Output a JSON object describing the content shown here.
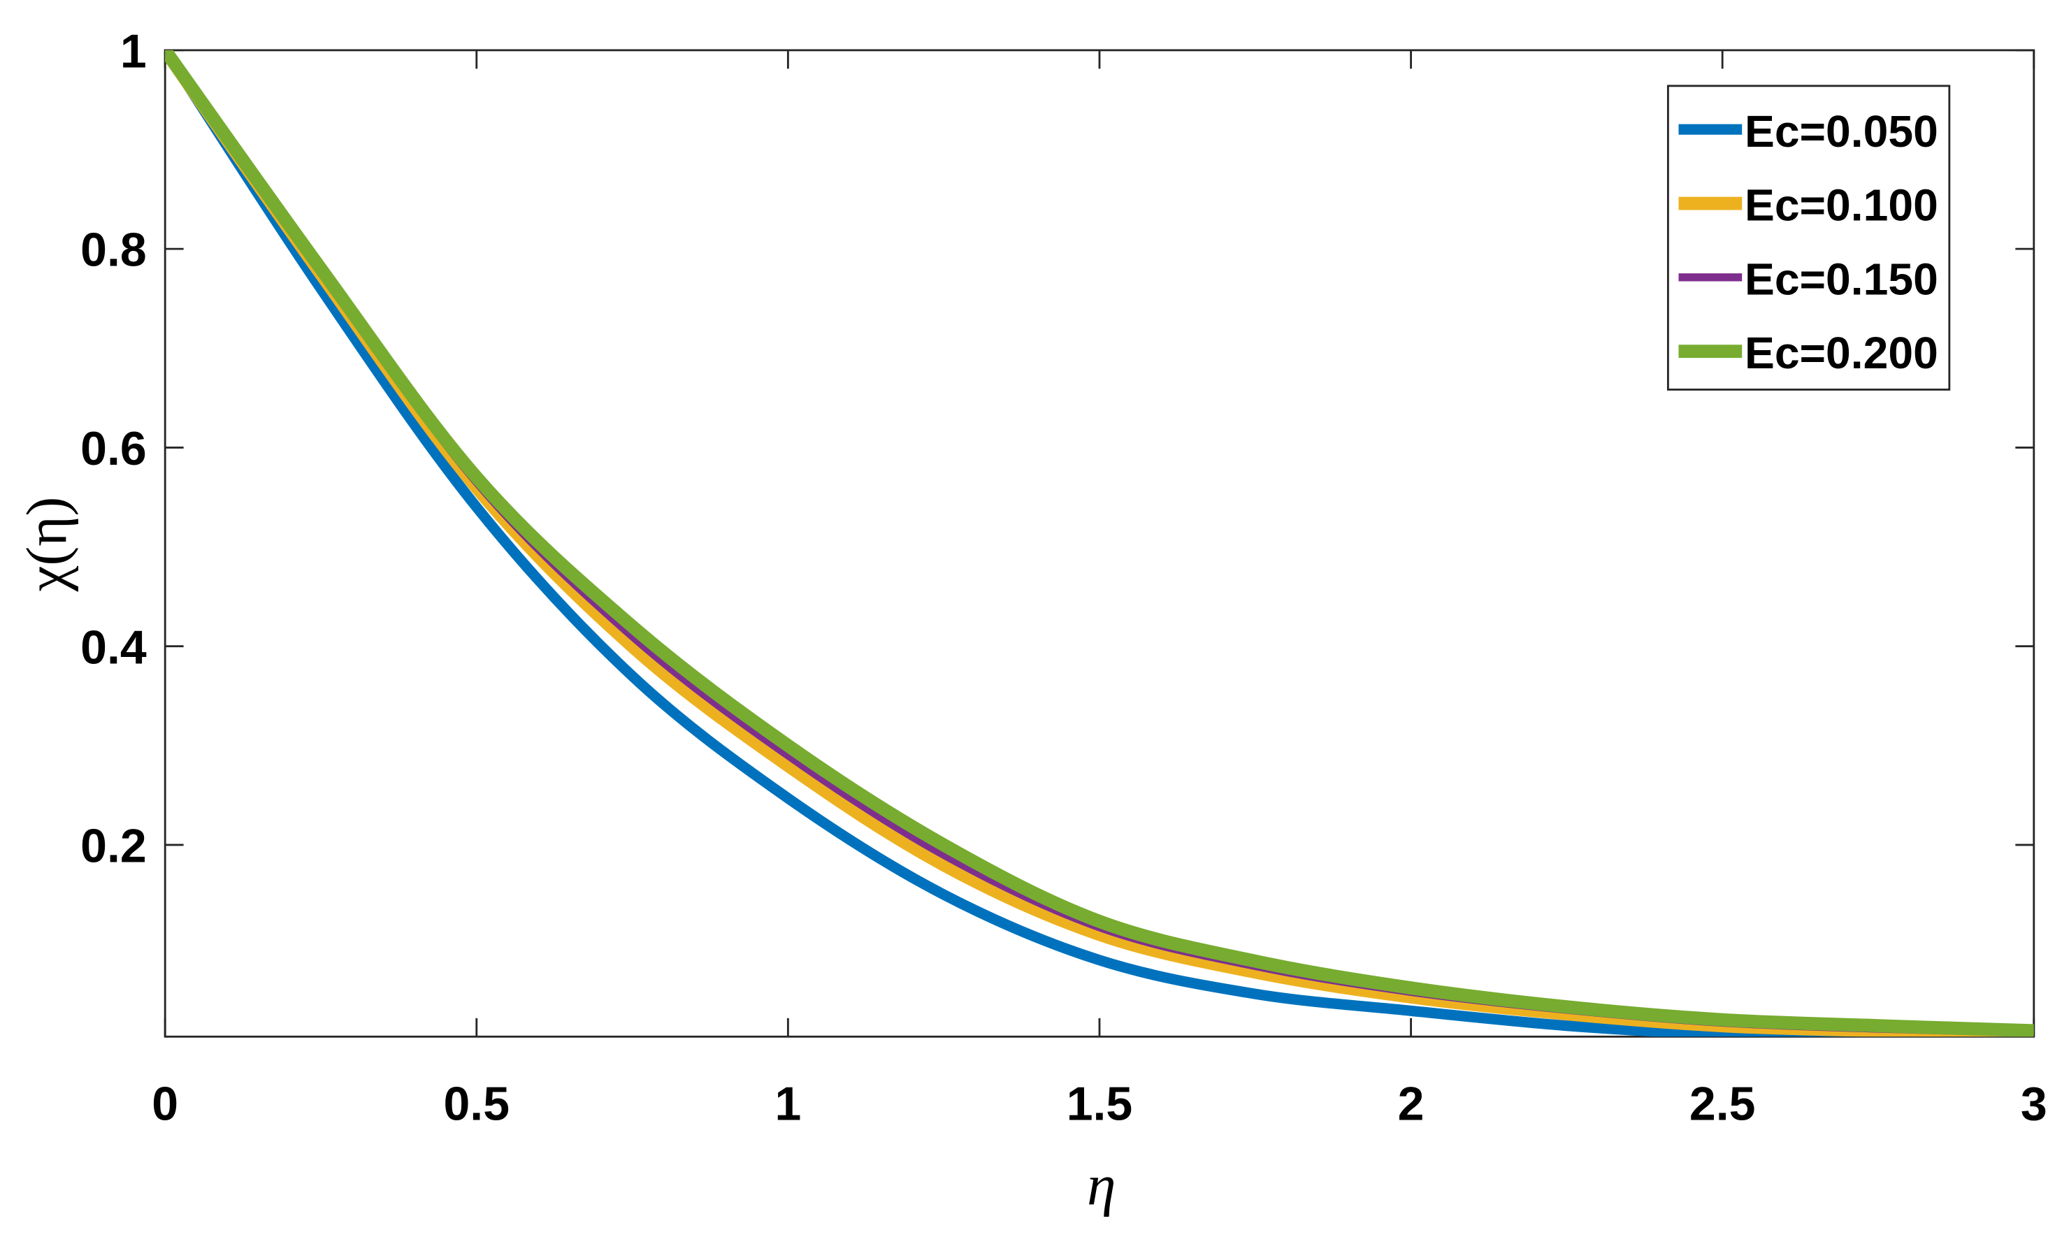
{
  "chart_data": {
    "type": "line",
    "x_label": "η",
    "y_label": "χ(η)",
    "x": [
      0,
      0.25,
      0.5,
      0.75,
      1,
      1.25,
      1.5,
      1.75,
      2,
      2.25,
      2.5,
      2.75,
      3
    ],
    "series": [
      {
        "name": "Ec=0.050",
        "color": "#0072bd",
        "values": [
          1,
          0.76,
          0.54,
          0.37,
          0.247,
          0.15,
          0.084,
          0.05,
          0.033,
          0.018,
          0.009,
          0.005,
          0.002
        ]
      },
      {
        "name": "Ec=0.100",
        "color": "#edb120",
        "values": [
          1,
          0.775,
          0.56,
          0.4,
          0.28,
          0.18,
          0.11,
          0.072,
          0.047,
          0.03,
          0.018,
          0.013,
          0.009
        ]
      },
      {
        "name": "Ec=0.150",
        "color": "#7e2f8e",
        "values": [
          1,
          0.778,
          0.565,
          0.41,
          0.29,
          0.19,
          0.117,
          0.078,
          0.052,
          0.034,
          0.021,
          0.015,
          0.011
        ]
      },
      {
        "name": "Ec=0.200",
        "color": "#77ac30",
        "values": [
          1,
          0.78,
          0.57,
          0.42,
          0.3,
          0.2,
          0.123,
          0.083,
          0.056,
          0.037,
          0.024,
          0.018,
          0.013
        ]
      }
    ],
    "xlim": [
      0,
      3
    ],
    "ylim": [
      0.007,
      1
    ],
    "xticks": [
      0,
      0.5,
      1,
      1.5,
      2,
      2.5,
      3
    ],
    "yticks": [
      0.2,
      0.4,
      0.6,
      0.8,
      1
    ],
    "legend": "top-right"
  }
}
